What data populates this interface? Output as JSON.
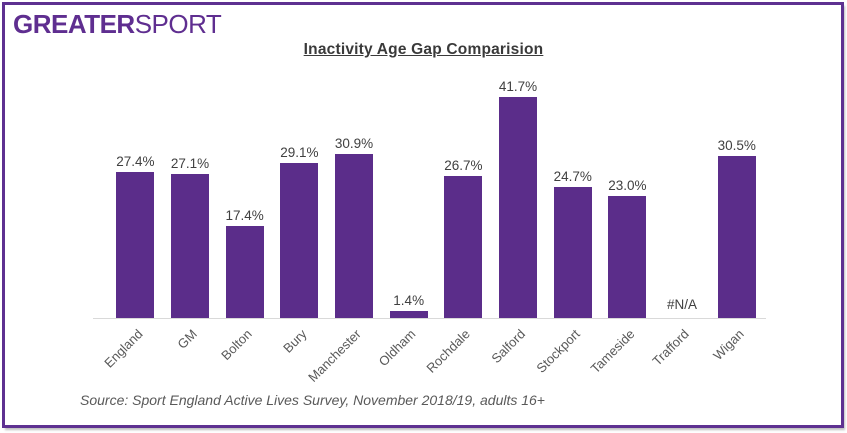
{
  "logo": {
    "text_bold": "GREATER",
    "text_light": "SPORT",
    "color": "#5F2E90"
  },
  "title": "Inactivity Age Gap Comparision",
  "source_note": "Source: Sport England Active Lives Survey, November 2018/19, adults 16+",
  "colors": {
    "bar": "#5B2D8A",
    "frame_border": "#5E3191",
    "axis_line": "#D9D9D9",
    "data_label_text": "#404040",
    "axis_label_text": "#595959"
  },
  "chart_data": {
    "type": "bar",
    "title": "Inactivity Age Gap Comparision",
    "categories": [
      "England",
      "GM",
      "Bolton",
      "Bury",
      "Manchester",
      "Oldham",
      "Rochdale",
      "Salford",
      "Stockport",
      "Tameside",
      "Trafford",
      "Wigan"
    ],
    "values": [
      27.4,
      27.1,
      17.4,
      29.1,
      30.9,
      1.4,
      26.7,
      41.7,
      24.7,
      23.0,
      null,
      30.5
    ],
    "data_labels": [
      "27.4%",
      "27.1%",
      "17.4%",
      "29.1%",
      "30.9%",
      "1.4%",
      "26.7%",
      "41.7%",
      "24.7%",
      "23.0%",
      "#N/A",
      "30.5%"
    ],
    "xlabel": "",
    "ylabel": "",
    "ylim": [
      0,
      45
    ],
    "grid": false,
    "legend": false,
    "x_tick_rotation": 45,
    "source": "Source: Sport England Active Lives Survey, November 2018/19, adults 16+"
  }
}
